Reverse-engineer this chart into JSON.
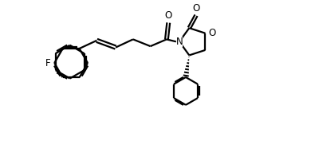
{
  "bg_color": "#ffffff",
  "line_color": "#000000",
  "line_width": 1.6,
  "fig_width": 3.9,
  "fig_height": 2.06,
  "dpi": 100,
  "F_label": "F",
  "O_label": "O",
  "N_label": "N",
  "font_size": 8.5,
  "xlim": [
    0,
    10.5
  ],
  "ylim": [
    -2.2,
    4.8
  ]
}
